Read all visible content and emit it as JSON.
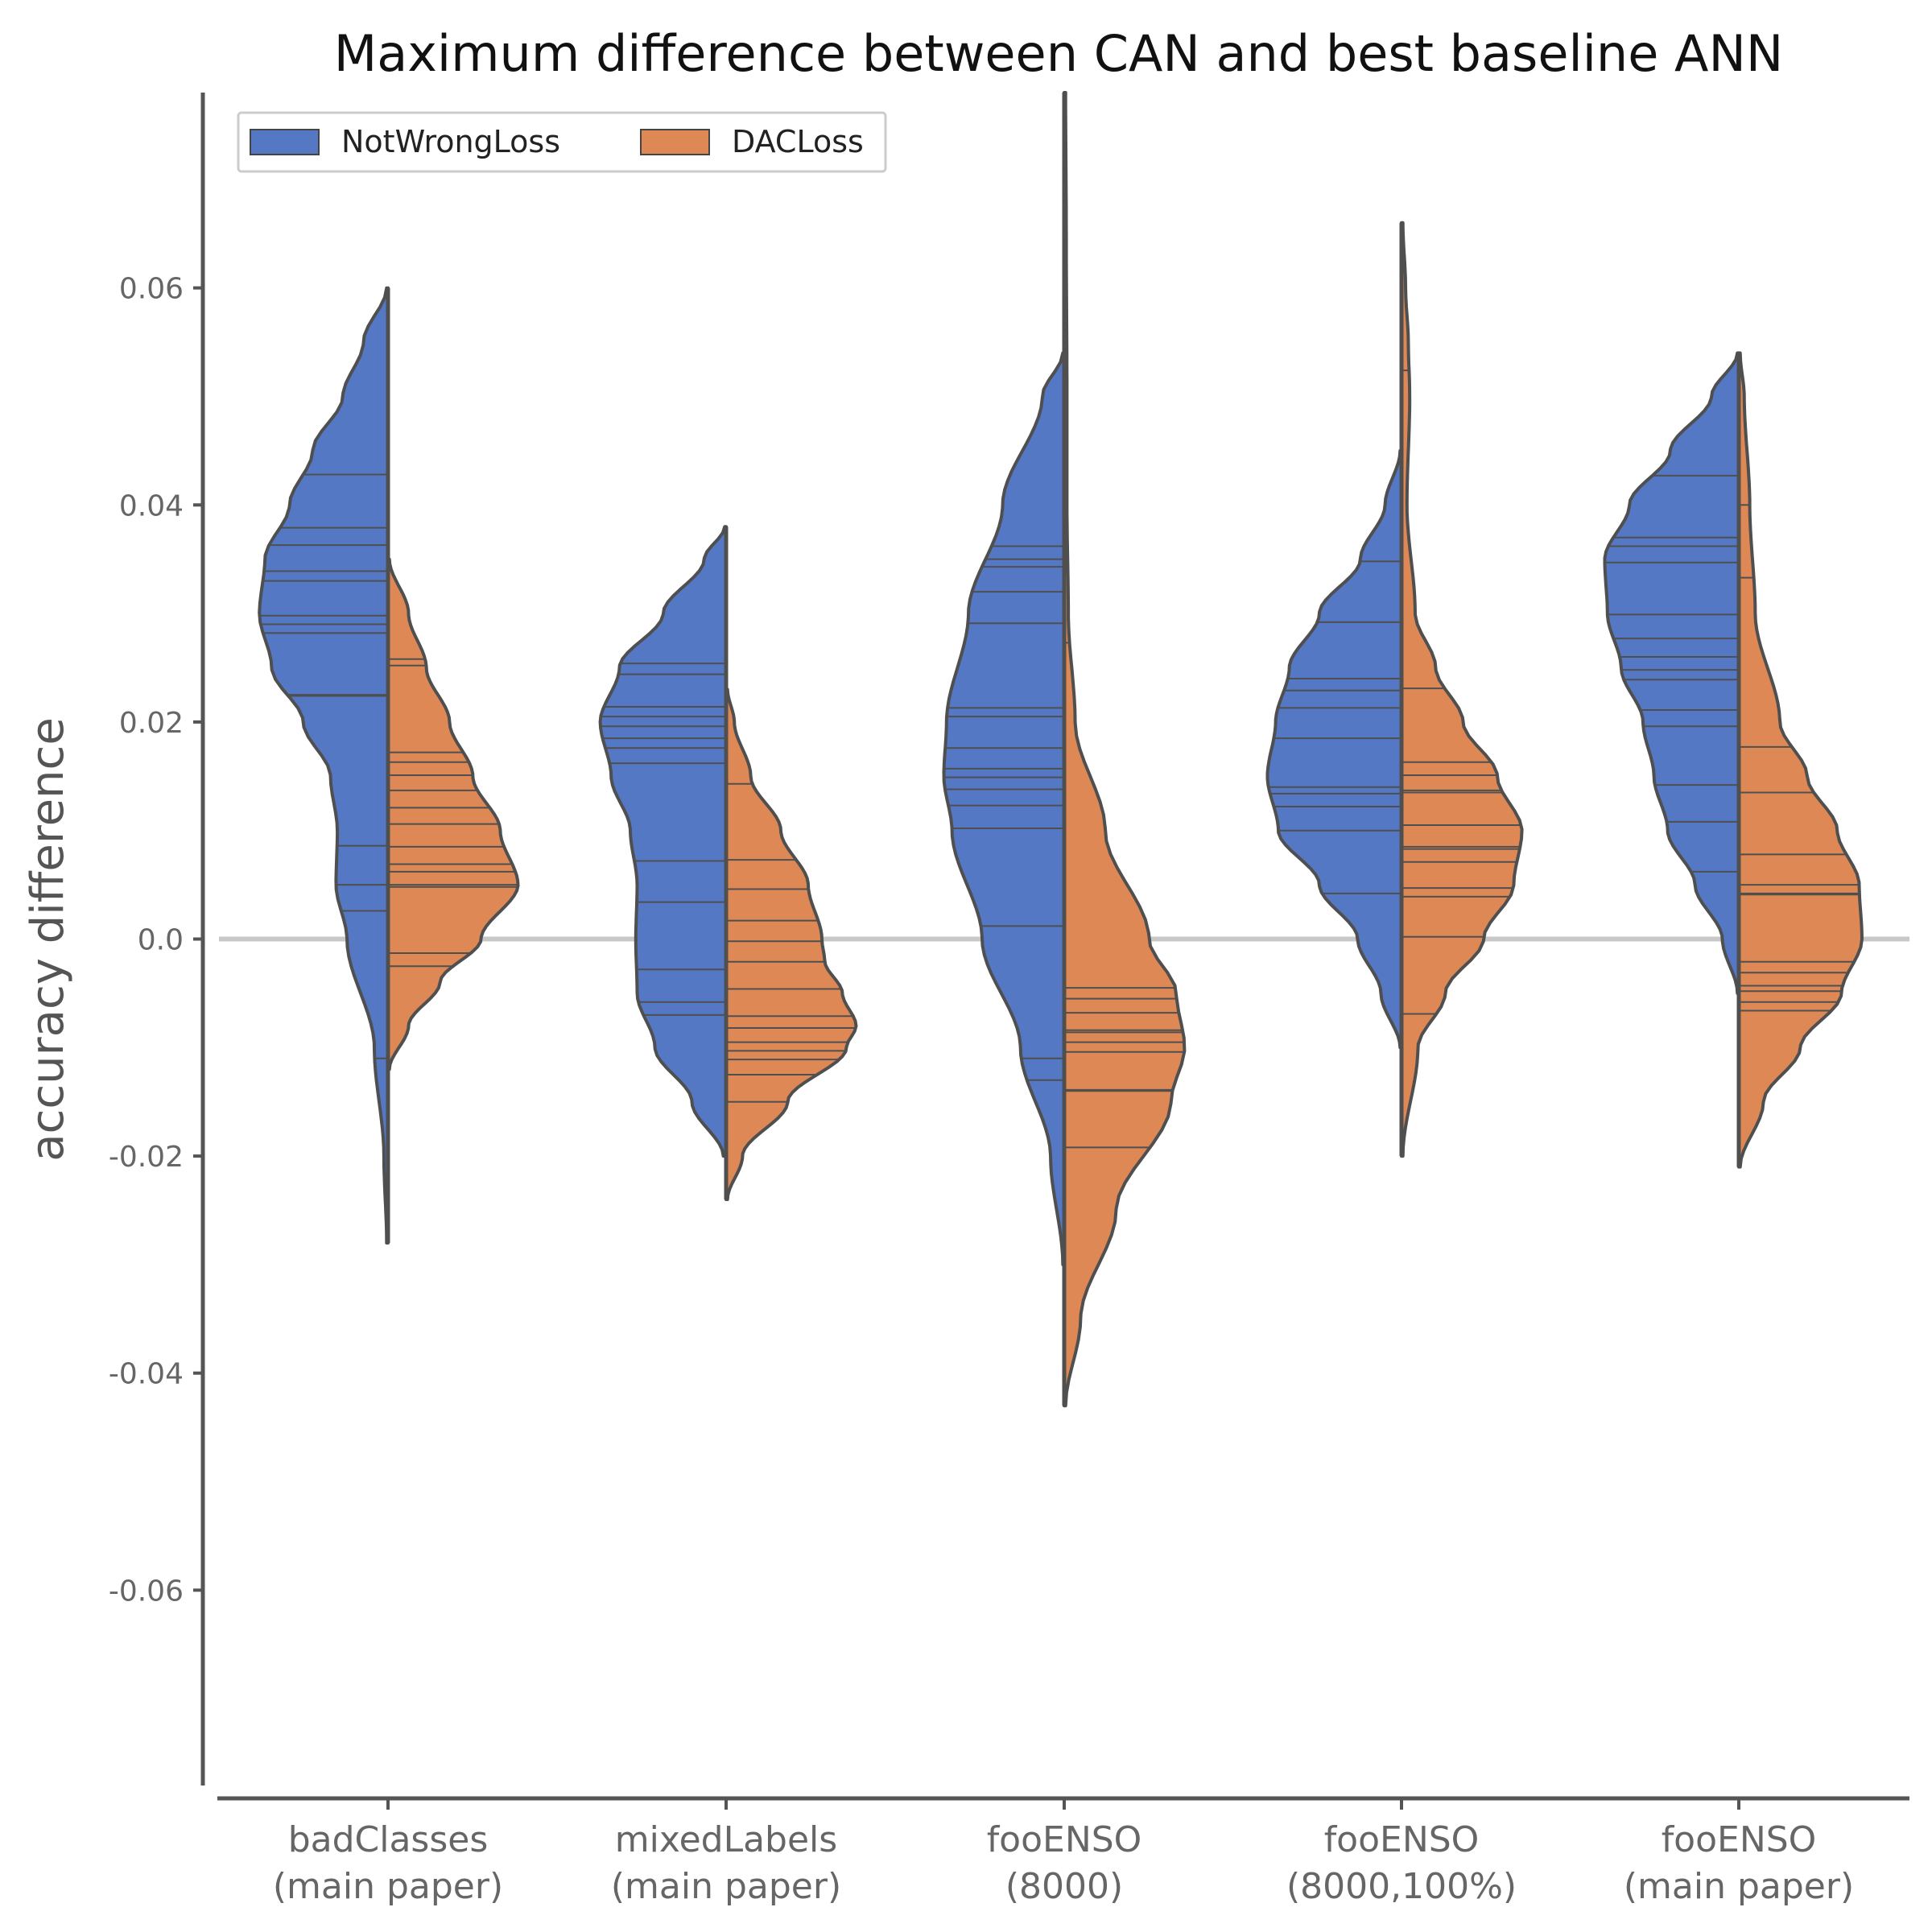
{
  "chart_data": {
    "type": "violin",
    "title": "Maximum difference between CAN and best baseline ANN",
    "ylabel": "accuracy difference",
    "xlabel": "",
    "ylim": [
      -0.078,
      0.078
    ],
    "yticks": [
      0.06,
      0.04,
      0.02,
      0.0,
      -0.02,
      -0.04,
      -0.06
    ],
    "ytick_labels": [
      "0.06",
      "0.04",
      "0.02",
      "0.0",
      "-0.02",
      "-0.04",
      "-0.06"
    ],
    "reference_line": 0.0,
    "legend_placement": "upper-left",
    "categories": [
      {
        "line1": "badClasses",
        "line2": "(main paper)"
      },
      {
        "line1": "mixedLabels",
        "line2": "(main paper)"
      },
      {
        "line1": "fooENSO",
        "line2": "(8000)"
      },
      {
        "line1": "fooENSO",
        "line2": "(8000,100%)"
      },
      {
        "line1": "fooENSO",
        "line2": "(main paper)"
      }
    ],
    "series": [
      {
        "name": "NotWrongLoss",
        "color": "#5578c4",
        "side": "left",
        "groups": [
          {
            "range": [
              -0.028,
              0.06
            ],
            "density": [
              [
                -0.028,
                0.01
              ],
              [
                -0.02,
                0.03
              ],
              [
                -0.01,
                0.1
              ],
              [
                0.0,
                0.3
              ],
              [
                0.005,
                0.38
              ],
              [
                0.01,
                0.37
              ],
              [
                0.015,
                0.42
              ],
              [
                0.02,
                0.62
              ],
              [
                0.025,
                0.85
              ],
              [
                0.03,
                0.94
              ],
              [
                0.035,
                0.9
              ],
              [
                0.04,
                0.72
              ],
              [
                0.045,
                0.55
              ],
              [
                0.05,
                0.33
              ],
              [
                0.055,
                0.18
              ],
              [
                0.06,
                0.01
              ]
            ],
            "points": [
              0.0428,
              0.0379,
              0.0363,
              0.0339,
              0.033,
              0.0298,
              0.029,
              0.0282,
              0.0225,
              0.0224,
              0.0086,
              0.005,
              0.0026,
              -0.011
            ]
          },
          {
            "range": [
              -0.02,
              0.038
            ],
            "density": [
              [
                -0.02,
                0.02
              ],
              [
                -0.015,
                0.25
              ],
              [
                -0.01,
                0.52
              ],
              [
                -0.005,
                0.65
              ],
              [
                0.0,
                0.66
              ],
              [
                0.005,
                0.65
              ],
              [
                0.01,
                0.7
              ],
              [
                0.015,
                0.84
              ],
              [
                0.02,
                0.92
              ],
              [
                0.025,
                0.78
              ],
              [
                0.03,
                0.46
              ],
              [
                0.035,
                0.16
              ],
              [
                0.038,
                0.01
              ]
            ],
            "points": [
              0.0254,
              0.0244,
              0.0214,
              0.0205,
              0.0196,
              0.0185,
              0.0176,
              0.0162,
              0.0072,
              0.0034,
              -0.0028,
              -0.0058,
              -0.007
            ]
          },
          {
            "range": [
              -0.03,
              0.054
            ],
            "density": [
              [
                -0.03,
                0.01
              ],
              [
                -0.02,
                0.1
              ],
              [
                -0.01,
                0.32
              ],
              [
                0.0,
                0.6
              ],
              [
                0.01,
                0.82
              ],
              [
                0.015,
                0.88
              ],
              [
                0.02,
                0.86
              ],
              [
                0.03,
                0.7
              ],
              [
                0.04,
                0.45
              ],
              [
                0.05,
                0.16
              ],
              [
                0.054,
                0.01
              ]
            ],
            "points": [
              0.0362,
              0.035,
              0.0343,
              0.032,
              0.0291,
              0.0213,
              0.0205,
              0.0176,
              0.0157,
              0.0149,
              0.0138,
              0.0123,
              0.0102,
              0.0012,
              -0.011,
              -0.013
            ]
          },
          {
            "range": [
              -0.01,
              0.045
            ],
            "density": [
              [
                -0.01,
                0.01
              ],
              [
                -0.005,
                0.15
              ],
              [
                0.0,
                0.32
              ],
              [
                0.005,
                0.6
              ],
              [
                0.01,
                0.9
              ],
              [
                0.015,
                0.98
              ],
              [
                0.02,
                0.92
              ],
              [
                0.025,
                0.82
              ],
              [
                0.03,
                0.6
              ],
              [
                0.035,
                0.3
              ],
              [
                0.04,
                0.12
              ],
              [
                0.045,
                0.01
              ]
            ],
            "points": [
              0.0348,
              0.0292,
              0.024,
              0.0229,
              0.0213,
              0.0185,
              0.014,
              0.0134,
              0.0122,
              0.01,
              0.0042
            ]
          },
          {
            "range": [
              -0.005,
              0.054
            ],
            "density": [
              [
                -0.005,
                0.01
              ],
              [
                0.0,
                0.12
              ],
              [
                0.005,
                0.32
              ],
              [
                0.01,
                0.52
              ],
              [
                0.015,
                0.62
              ],
              [
                0.02,
                0.7
              ],
              [
                0.025,
                0.86
              ],
              [
                0.03,
                0.96
              ],
              [
                0.035,
                0.98
              ],
              [
                0.04,
                0.8
              ],
              [
                0.045,
                0.5
              ],
              [
                0.05,
                0.2
              ],
              [
                0.054,
                0.01
              ]
            ],
            "points": [
              0.0427,
              0.037,
              0.0362,
              0.0347,
              0.0299,
              0.0277,
              0.026,
              0.0248,
              0.0239,
              0.0211,
              0.0196,
              0.0142,
              0.0108,
              0.0062
            ]
          }
        ]
      },
      {
        "name": "DACLoss",
        "color": "#dd8855",
        "side": "right",
        "groups": [
          {
            "range": [
              -0.012,
              0.035
            ],
            "density": [
              [
                -0.012,
                0.01
              ],
              [
                -0.008,
                0.15
              ],
              [
                -0.004,
                0.38
              ],
              [
                0.0,
                0.68
              ],
              [
                0.005,
                0.95
              ],
              [
                0.01,
                0.82
              ],
              [
                0.015,
                0.62
              ],
              [
                0.02,
                0.45
              ],
              [
                0.025,
                0.28
              ],
              [
                0.03,
                0.15
              ],
              [
                0.035,
                0.01
              ]
            ],
            "points": [
              0.0258,
              0.0252,
              0.0172,
              0.0163,
              0.0151,
              0.0137,
              0.0121,
              0.0106,
              0.0085,
              0.0069,
              0.0062,
              0.005,
              0.0048,
              -0.0013,
              -0.0025
            ]
          },
          {
            "range": [
              -0.024,
              0.023
            ],
            "density": [
              [
                -0.024,
                0.01
              ],
              [
                -0.02,
                0.12
              ],
              [
                -0.015,
                0.45
              ],
              [
                -0.01,
                0.88
              ],
              [
                -0.008,
                0.95
              ],
              [
                -0.005,
                0.85
              ],
              [
                -0.002,
                0.72
              ],
              [
                0.0,
                0.7
              ],
              [
                0.005,
                0.6
              ],
              [
                0.01,
                0.4
              ],
              [
                0.015,
                0.18
              ],
              [
                0.02,
                0.06
              ],
              [
                0.023,
                0.01
              ]
            ],
            "points": [
              0.0143,
              0.0073,
              0.0046,
              0.0017,
              -0.0002,
              -0.0021,
              -0.0046,
              -0.0071,
              -0.0082,
              -0.0095,
              -0.0103,
              -0.0111,
              -0.0125,
              -0.015
            ]
          },
          {
            "range": [
              -0.043,
              0.078
            ],
            "density": [
              [
                -0.043,
                0.01
              ],
              [
                -0.035,
                0.12
              ],
              [
                -0.025,
                0.38
              ],
              [
                -0.015,
                0.78
              ],
              [
                -0.01,
                0.88
              ],
              [
                -0.005,
                0.82
              ],
              [
                0.0,
                0.62
              ],
              [
                0.01,
                0.3
              ],
              [
                0.02,
                0.08
              ],
              [
                0.03,
                0.03
              ],
              [
                0.04,
                0.02
              ],
              [
                0.05,
                0.02
              ],
              [
                0.065,
                0.015
              ],
              [
                0.078,
                0.01
              ]
            ],
            "points": [
              0.064,
              0.0407,
              0.0273,
              -0.0045,
              -0.0055,
              -0.0068,
              -0.0084,
              -0.0086,
              -0.0095,
              -0.0104,
              -0.0139,
              -0.014,
              -0.0192
            ]
          },
          {
            "range": [
              -0.02,
              0.066
            ],
            "density": [
              [
                -0.02,
                0.01
              ],
              [
                -0.01,
                0.12
              ],
              [
                -0.005,
                0.32
              ],
              [
                0.0,
                0.6
              ],
              [
                0.005,
                0.82
              ],
              [
                0.01,
                0.88
              ],
              [
                0.015,
                0.7
              ],
              [
                0.02,
                0.45
              ],
              [
                0.025,
                0.25
              ],
              [
                0.03,
                0.1
              ],
              [
                0.04,
                0.04
              ],
              [
                0.05,
                0.06
              ],
              [
                0.055,
                0.05
              ],
              [
                0.06,
                0.03
              ],
              [
                0.066,
                0.01
              ]
            ],
            "points": [
              0.0524,
              0.0231,
              0.0163,
              0.0151,
              0.0137,
              0.0135,
              0.0105,
              0.0085,
              0.0083,
              0.0071,
              0.0047,
              0.0039,
              0.0002,
              -0.0069
            ]
          },
          {
            "range": [
              -0.021,
              0.054
            ],
            "density": [
              [
                -0.021,
                0.01
              ],
              [
                -0.015,
                0.18
              ],
              [
                -0.01,
                0.45
              ],
              [
                -0.005,
                0.75
              ],
              [
                0.0,
                0.9
              ],
              [
                0.005,
                0.88
              ],
              [
                0.01,
                0.72
              ],
              [
                0.015,
                0.5
              ],
              [
                0.02,
                0.3
              ],
              [
                0.03,
                0.12
              ],
              [
                0.04,
                0.08
              ],
              [
                0.05,
                0.04
              ],
              [
                0.054,
                0.01
              ]
            ],
            "points": [
              0.04,
              0.0333,
              0.0177,
              0.0135,
              0.0078,
              0.005,
              0.0042,
              0.0041,
              -0.0021,
              -0.0031,
              -0.0043,
              -0.0048,
              -0.0058,
              -0.0066
            ]
          }
        ]
      }
    ]
  },
  "legend": {
    "items": [
      {
        "label": "NotWrongLoss",
        "color": "#5578c4"
      },
      {
        "label": "DACLoss",
        "color": "#dd8855"
      }
    ]
  }
}
